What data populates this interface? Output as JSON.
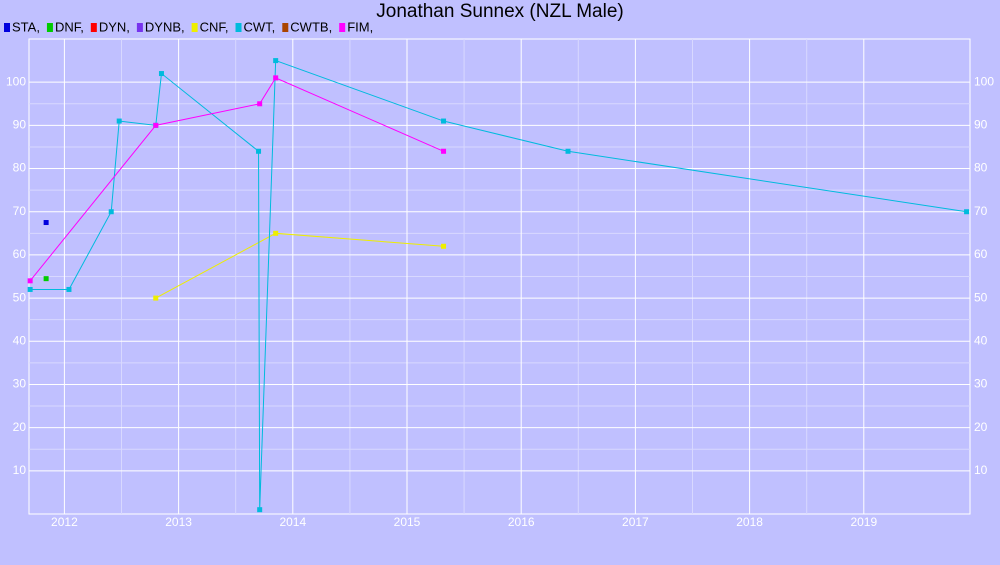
{
  "chart_data": {
    "type": "line",
    "title": "Jonathan Sunnex (NZL Male)",
    "xlim": [
      2011.69,
      2019.93
    ],
    "xticks": [
      2012,
      2013,
      2014,
      2015,
      2016,
      2017,
      2018,
      2019
    ],
    "ylim": [
      0,
      110
    ],
    "yticks": [
      10,
      20,
      30,
      40,
      50,
      60,
      70,
      80,
      90,
      100
    ],
    "grid": true,
    "series": [
      {
        "name": "STA,",
        "color": "#0000dd",
        "x": [
          2011.84
        ],
        "values": [
          67.5
        ]
      },
      {
        "name": "DNF,",
        "color": "#00cc00",
        "x": [
          2011.84
        ],
        "values": [
          54.5
        ]
      },
      {
        "name": "DYN,",
        "color": "#ff0000",
        "x": [],
        "values": []
      },
      {
        "name": "DYNB,",
        "color": "#7733ee",
        "x": [],
        "values": []
      },
      {
        "name": "CNF,",
        "color": "#eeee00",
        "x": [
          2012.8,
          2013.85,
          2015.32
        ],
        "values": [
          50,
          65,
          62
        ]
      },
      {
        "name": "CWT,",
        "color": "#00bbdd",
        "x": [
          2011.7,
          2012.04,
          2012.41,
          2012.48,
          2012.8,
          2012.85,
          2013.7,
          2013.71,
          2013.85,
          2015.32,
          2016.41,
          2019.9
        ],
        "values": [
          52,
          52,
          70,
          91,
          90,
          102,
          84,
          1,
          105,
          91,
          84,
          70
        ]
      },
      {
        "name": "CWTB,",
        "color": "#aa4400",
        "x": [],
        "values": []
      },
      {
        "name": "FIM,",
        "color": "#ff00ff",
        "x": [
          2011.7,
          2012.8,
          2013.71,
          2013.85,
          2015.32
        ],
        "values": [
          54,
          90,
          95,
          101,
          84
        ]
      }
    ]
  }
}
